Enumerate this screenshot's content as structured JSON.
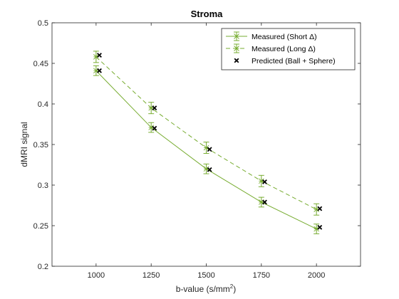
{
  "chart_data": {
    "type": "line",
    "title": "Stroma",
    "xlabel_main": "b-value (s/mm",
    "xlabel_sup": "2",
    "xlabel_close": ")",
    "ylabel": "dMRI signal",
    "xlim": [
      800,
      2200
    ],
    "ylim": [
      0.2,
      0.5
    ],
    "xticks": [
      "1000",
      "1250",
      "1500",
      "1750",
      "2000"
    ],
    "yticks": [
      "0.2",
      "0.25",
      "0.3",
      "0.35",
      "0.4",
      "0.45",
      "0.5"
    ],
    "grid": false,
    "legend_position": "top-right",
    "series": [
      {
        "name": "Measured (Short Δ)",
        "style": "solid",
        "color": "#77AC30",
        "x": [
          1000,
          1250,
          1500,
          1750,
          2000
        ],
        "y": [
          0.441,
          0.371,
          0.32,
          0.279,
          0.246
        ],
        "err": [
          0.006,
          0.006,
          0.006,
          0.006,
          0.006
        ]
      },
      {
        "name": "Measured (Long Δ)",
        "style": "dashed",
        "color": "#77AC30",
        "x": [
          1000,
          1250,
          1500,
          1750,
          2000
        ],
        "y": [
          0.458,
          0.395,
          0.346,
          0.305,
          0.27
        ],
        "err": [
          0.007,
          0.007,
          0.007,
          0.007,
          0.007
        ]
      },
      {
        "name": "Predicted (Ball + Sphere)",
        "style": "markers",
        "color": "#000000",
        "x": [
          1015,
          1015,
          1265,
          1265,
          1515,
          1515,
          1765,
          1765,
          2015,
          2015
        ],
        "y": [
          0.441,
          0.46,
          0.37,
          0.395,
          0.319,
          0.344,
          0.279,
          0.304,
          0.248,
          0.271
        ]
      }
    ]
  }
}
